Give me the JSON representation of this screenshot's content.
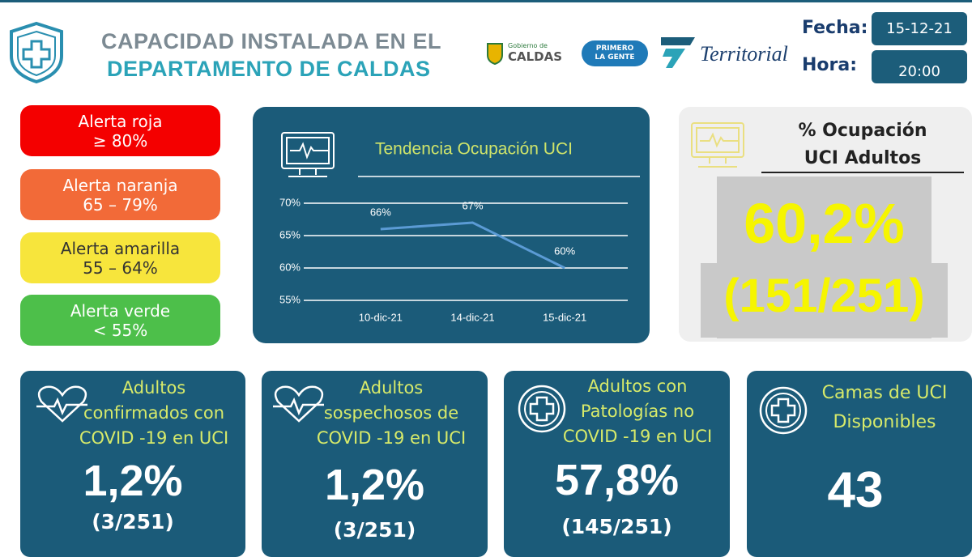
{
  "header": {
    "title": [
      "CAPACIDAD INSTALADA EN EL",
      "DEPARTAMENTO DE CALDAS"
    ],
    "logos": [
      "Gobierno de",
      "CALDAS",
      "PRIMERO",
      "LA GENTE",
      "Territorial"
    ],
    "date_label": "Fecha:",
    "date": "15-12-21",
    "time_label": "Hora:",
    "time": "20:00"
  },
  "alerts": [
    {
      "name": "Alerta roja",
      "range": "≥ 80%"
    },
    {
      "name": "Alerta naranja",
      "range": "65 – 79%"
    },
    {
      "name": "Alerta amarilla",
      "range": "55 – 64%"
    },
    {
      "name": "Alerta verde",
      "range": "< 55%"
    }
  ],
  "chart_data": {
    "type": "line",
    "title": "Tendencia Ocupación UCI",
    "categories": [
      "10-dic-21",
      "14-dic-21",
      "15-dic-21"
    ],
    "values": [
      66,
      67,
      60
    ],
    "value_labels": [
      "66%",
      "67%",
      "60%"
    ],
    "color": "#5b9bd5",
    "ylim": [
      55,
      70
    ],
    "yticks": [
      {
        "value": 55,
        "label": "55%"
      },
      {
        "value": 60,
        "label": "60%"
      },
      {
        "value": 65,
        "label": "65%"
      },
      {
        "value": 70,
        "label": "70%"
      }
    ],
    "grid": true
  },
  "occupancy": {
    "title": [
      "% Ocupación",
      "UCI Adultos"
    ],
    "value": "60,2%",
    "fraction": "(151/251)"
  },
  "cards": [
    {
      "title": [
        "Adultos",
        "confirmados con",
        "COVID -19 en UCI"
      ],
      "value": "1,2%",
      "fraction": "(3/251)"
    },
    {
      "title": [
        "Adultos",
        "sospechosos de",
        "COVID -19 en UCI"
      ],
      "value": "1,2%",
      "fraction": "(3/251)"
    },
    {
      "title": [
        "Adultos con",
        "Patologías no",
        "COVID -19 en UCI"
      ],
      "value": "57,8%",
      "fraction": "(145/251)"
    },
    {
      "title": [
        "Camas de UCI",
        "Disponibles"
      ],
      "value": "43"
    }
  ]
}
